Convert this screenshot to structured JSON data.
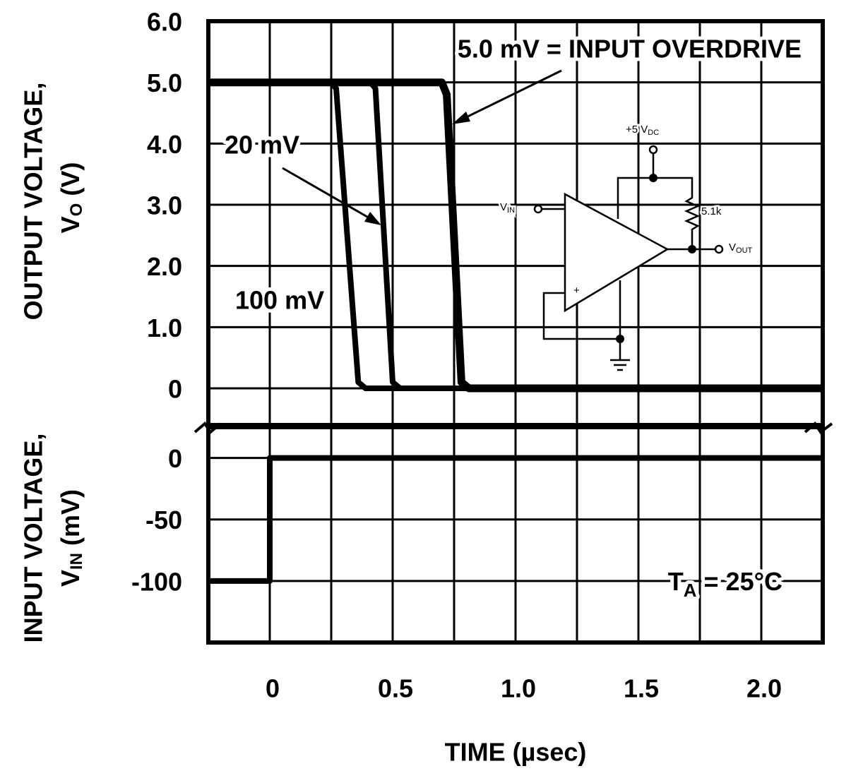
{
  "chart_data": [
    {
      "type": "line",
      "y_label": "OUTPUT VOLTAGE,",
      "y_symbol": {
        "main": "V",
        "sub": "O",
        "unit": " (V)"
      },
      "xlim": [
        -0.25,
        2.25
      ],
      "ylim": [
        -0.6,
        6
      ],
      "yticks": [
        {
          "value": 6,
          "label": "6.0"
        },
        {
          "value": 5,
          "label": "5.0"
        },
        {
          "value": 4,
          "label": "4.0"
        },
        {
          "value": 3,
          "label": "3.0"
        },
        {
          "value": 2,
          "label": "2.0"
        },
        {
          "value": 1,
          "label": "1.0"
        },
        0
      ],
      "grid": true,
      "series": [
        {
          "name": "5.0 mV = INPUT OVERDRIVE",
          "color": "#000000",
          "x": [
            -0.25,
            0.7,
            0.72,
            0.78,
            0.81,
            2.25
          ],
          "values": [
            5,
            5,
            4.8,
            0.1,
            0,
            0
          ]
        },
        {
          "name": "20 mV",
          "color": "#000000",
          "x": [
            -0.25,
            0.41,
            0.43,
            0.5,
            0.53,
            2.25
          ],
          "values": [
            5,
            5,
            4.9,
            0.1,
            0,
            0
          ]
        },
        {
          "name": "100 mV",
          "color": "#000000",
          "x": [
            -0.25,
            0.25,
            0.27,
            0.36,
            0.39,
            2.25
          ],
          "values": [
            5,
            5,
            4.9,
            0.1,
            0,
            0
          ]
        }
      ],
      "inset": {
        "supply": {
          "main": "+5 V",
          "sub": "DC"
        },
        "input": {
          "main": "V",
          "sub": "IN"
        },
        "resistor": "5.1k",
        "output": {
          "main": "V",
          "sub": "OUT"
        },
        "noninverting": "+"
      }
    },
    {
      "type": "line",
      "y_label": "INPUT VOLTAGE,",
      "y_symbol": {
        "main": "V",
        "sub": "IN",
        "unit": " (mV)"
      },
      "x_label": "TIME (µsec)",
      "xlim": [
        -0.25,
        2.25
      ],
      "xticks": [
        0,
        {
          "value": 0.5,
          "label": "0.5"
        },
        {
          "value": 1,
          "label": "1.0"
        },
        {
          "value": 1.5,
          "label": "1.5"
        },
        {
          "value": 2,
          "label": "2.0"
        }
      ],
      "x_minor_ticks": [
        0.25,
        0.75,
        1.25,
        1.75
      ],
      "ylim": [
        -150,
        25
      ],
      "yticks": [
        0,
        -50,
        -100
      ],
      "grid": true,
      "series": [
        {
          "color": "#000000",
          "x": [
            -0.25,
            0,
            0,
            2.25
          ],
          "values": [
            -100,
            -100,
            0,
            0
          ]
        }
      ],
      "annotation": {
        "main": "T",
        "sub": "A",
        "rest": " = 25°C"
      }
    }
  ]
}
